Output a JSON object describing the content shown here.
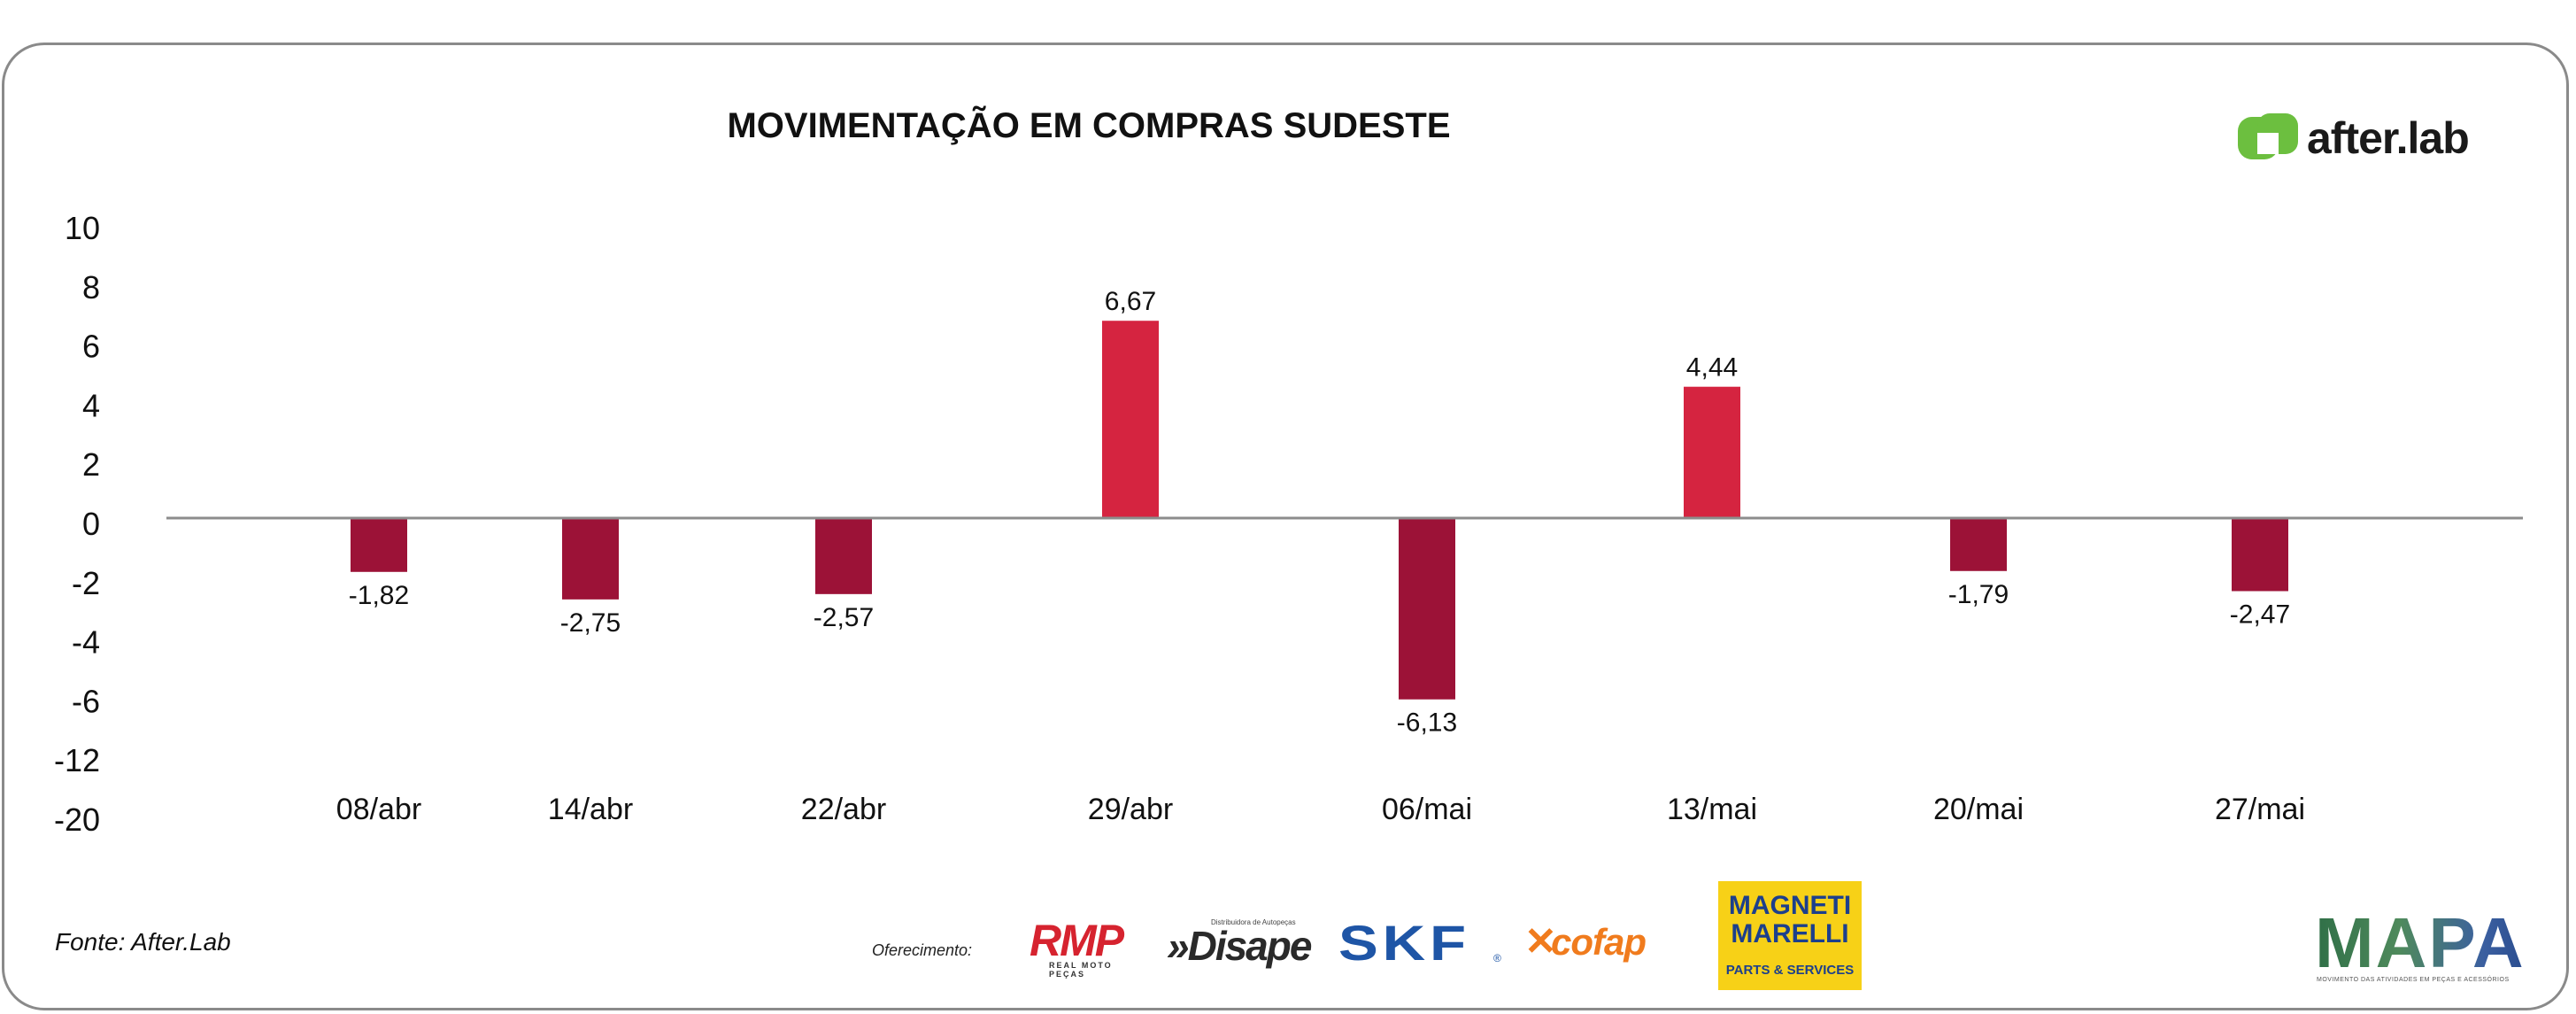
{
  "title": "MOVIMENTAÇÃO EM COMPRAS SUDESTE",
  "brand": {
    "name": "after.lab",
    "color": "#6cbf3f"
  },
  "chart_data": {
    "type": "bar",
    "title": "MOVIMENTAÇÃO EM COMPRAS SUDESTE",
    "categories": [
      "08/abr",
      "14/abr",
      "22/abr",
      "29/abr",
      "06/mai",
      "13/mai",
      "20/mai",
      "27/mai"
    ],
    "values": [
      -1.82,
      -2.75,
      -2.57,
      6.67,
      -6.13,
      4.44,
      -1.79,
      -2.47
    ],
    "data_labels": [
      "-1,82",
      "-2,75",
      "-2,57",
      "6,67",
      "-6,13",
      "4,44",
      "-1,79",
      "-2,47"
    ],
    "y_ticks": [
      "10",
      "8",
      "6",
      "4",
      "2",
      "0",
      "-2",
      "-4",
      "-6",
      "-12",
      "-20"
    ],
    "grid": false,
    "legend": "none",
    "colors": {
      "positive": "#d52440",
      "negative": "#9c1237",
      "zero_line": "#8c8c8c"
    }
  },
  "footer": {
    "source": "Fonte: After.Lab",
    "sponsor_label": "Oferecimento:",
    "sponsors": [
      {
        "name": "RMP",
        "tagline": "REAL MOTO PEÇAS"
      },
      {
        "name": "Disape",
        "tagline": "Distribuidora de Autopeças"
      },
      {
        "name": "SKF"
      },
      {
        "name": "cofap"
      },
      {
        "name": "MAGNETI MARELLI",
        "tagline": "PARTS & SERVICES"
      }
    ],
    "mapa": {
      "name": "MAPA",
      "tagline": "MOVIMENTO DAS ATIVIDADES EM PEÇAS E ACESSÓRIOS"
    }
  }
}
